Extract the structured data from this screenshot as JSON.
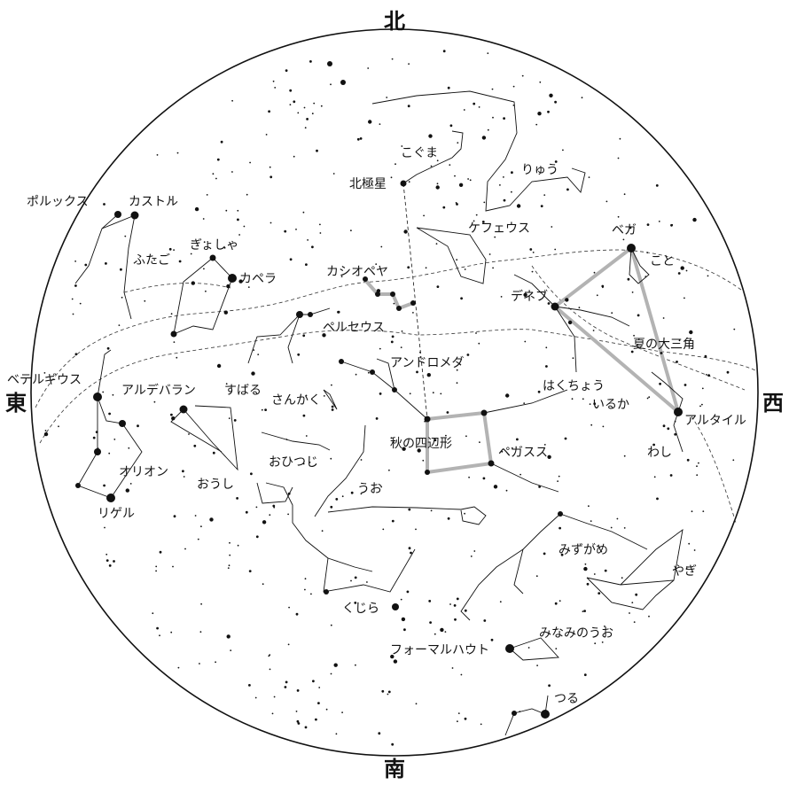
{
  "directions": {
    "north": "北",
    "south": "南",
    "east": "東",
    "west": "西"
  },
  "labels": {
    "kogumaza": "こぐま",
    "ryuu": "りゅう",
    "hokkyokusei": "北極星",
    "kefeusu": "ケフェウス",
    "pollux": "ポルックス",
    "castor": "カストル",
    "gyosha": "ぎょしゃ",
    "futago": "ふたご",
    "capella": "カペラ",
    "cassiopeia": "カシオペヤ",
    "vega": "ベガ",
    "koto": "こと",
    "deneb": "デネブ",
    "perseus": "ペルセウス",
    "natsu_sankaku": "夏の大三角",
    "andromeda": "アンドロメダ",
    "hakucho": "はくちょう",
    "betelgeuse": "ベテルギウス",
    "aldebaran": "アルデバラン",
    "subaru": "すばる",
    "sankaku": "さんかく",
    "iruka": "いるか",
    "altair": "アルタイル",
    "aki_shihenkei": "秋の四辺形",
    "pegasus": "ペガスス",
    "washi": "わし",
    "orion": "オリオン",
    "ohitsuji": "おひつじ",
    "oushi": "おうし",
    "rigel": "リゲル",
    "uo": "うお",
    "mizugame": "みずがめ",
    "yagi": "やぎ",
    "kujira": "くじら",
    "minami_uo": "みなみのうお",
    "fomalhaut": "フォーマルハウト",
    "tsuru": "つる"
  }
}
